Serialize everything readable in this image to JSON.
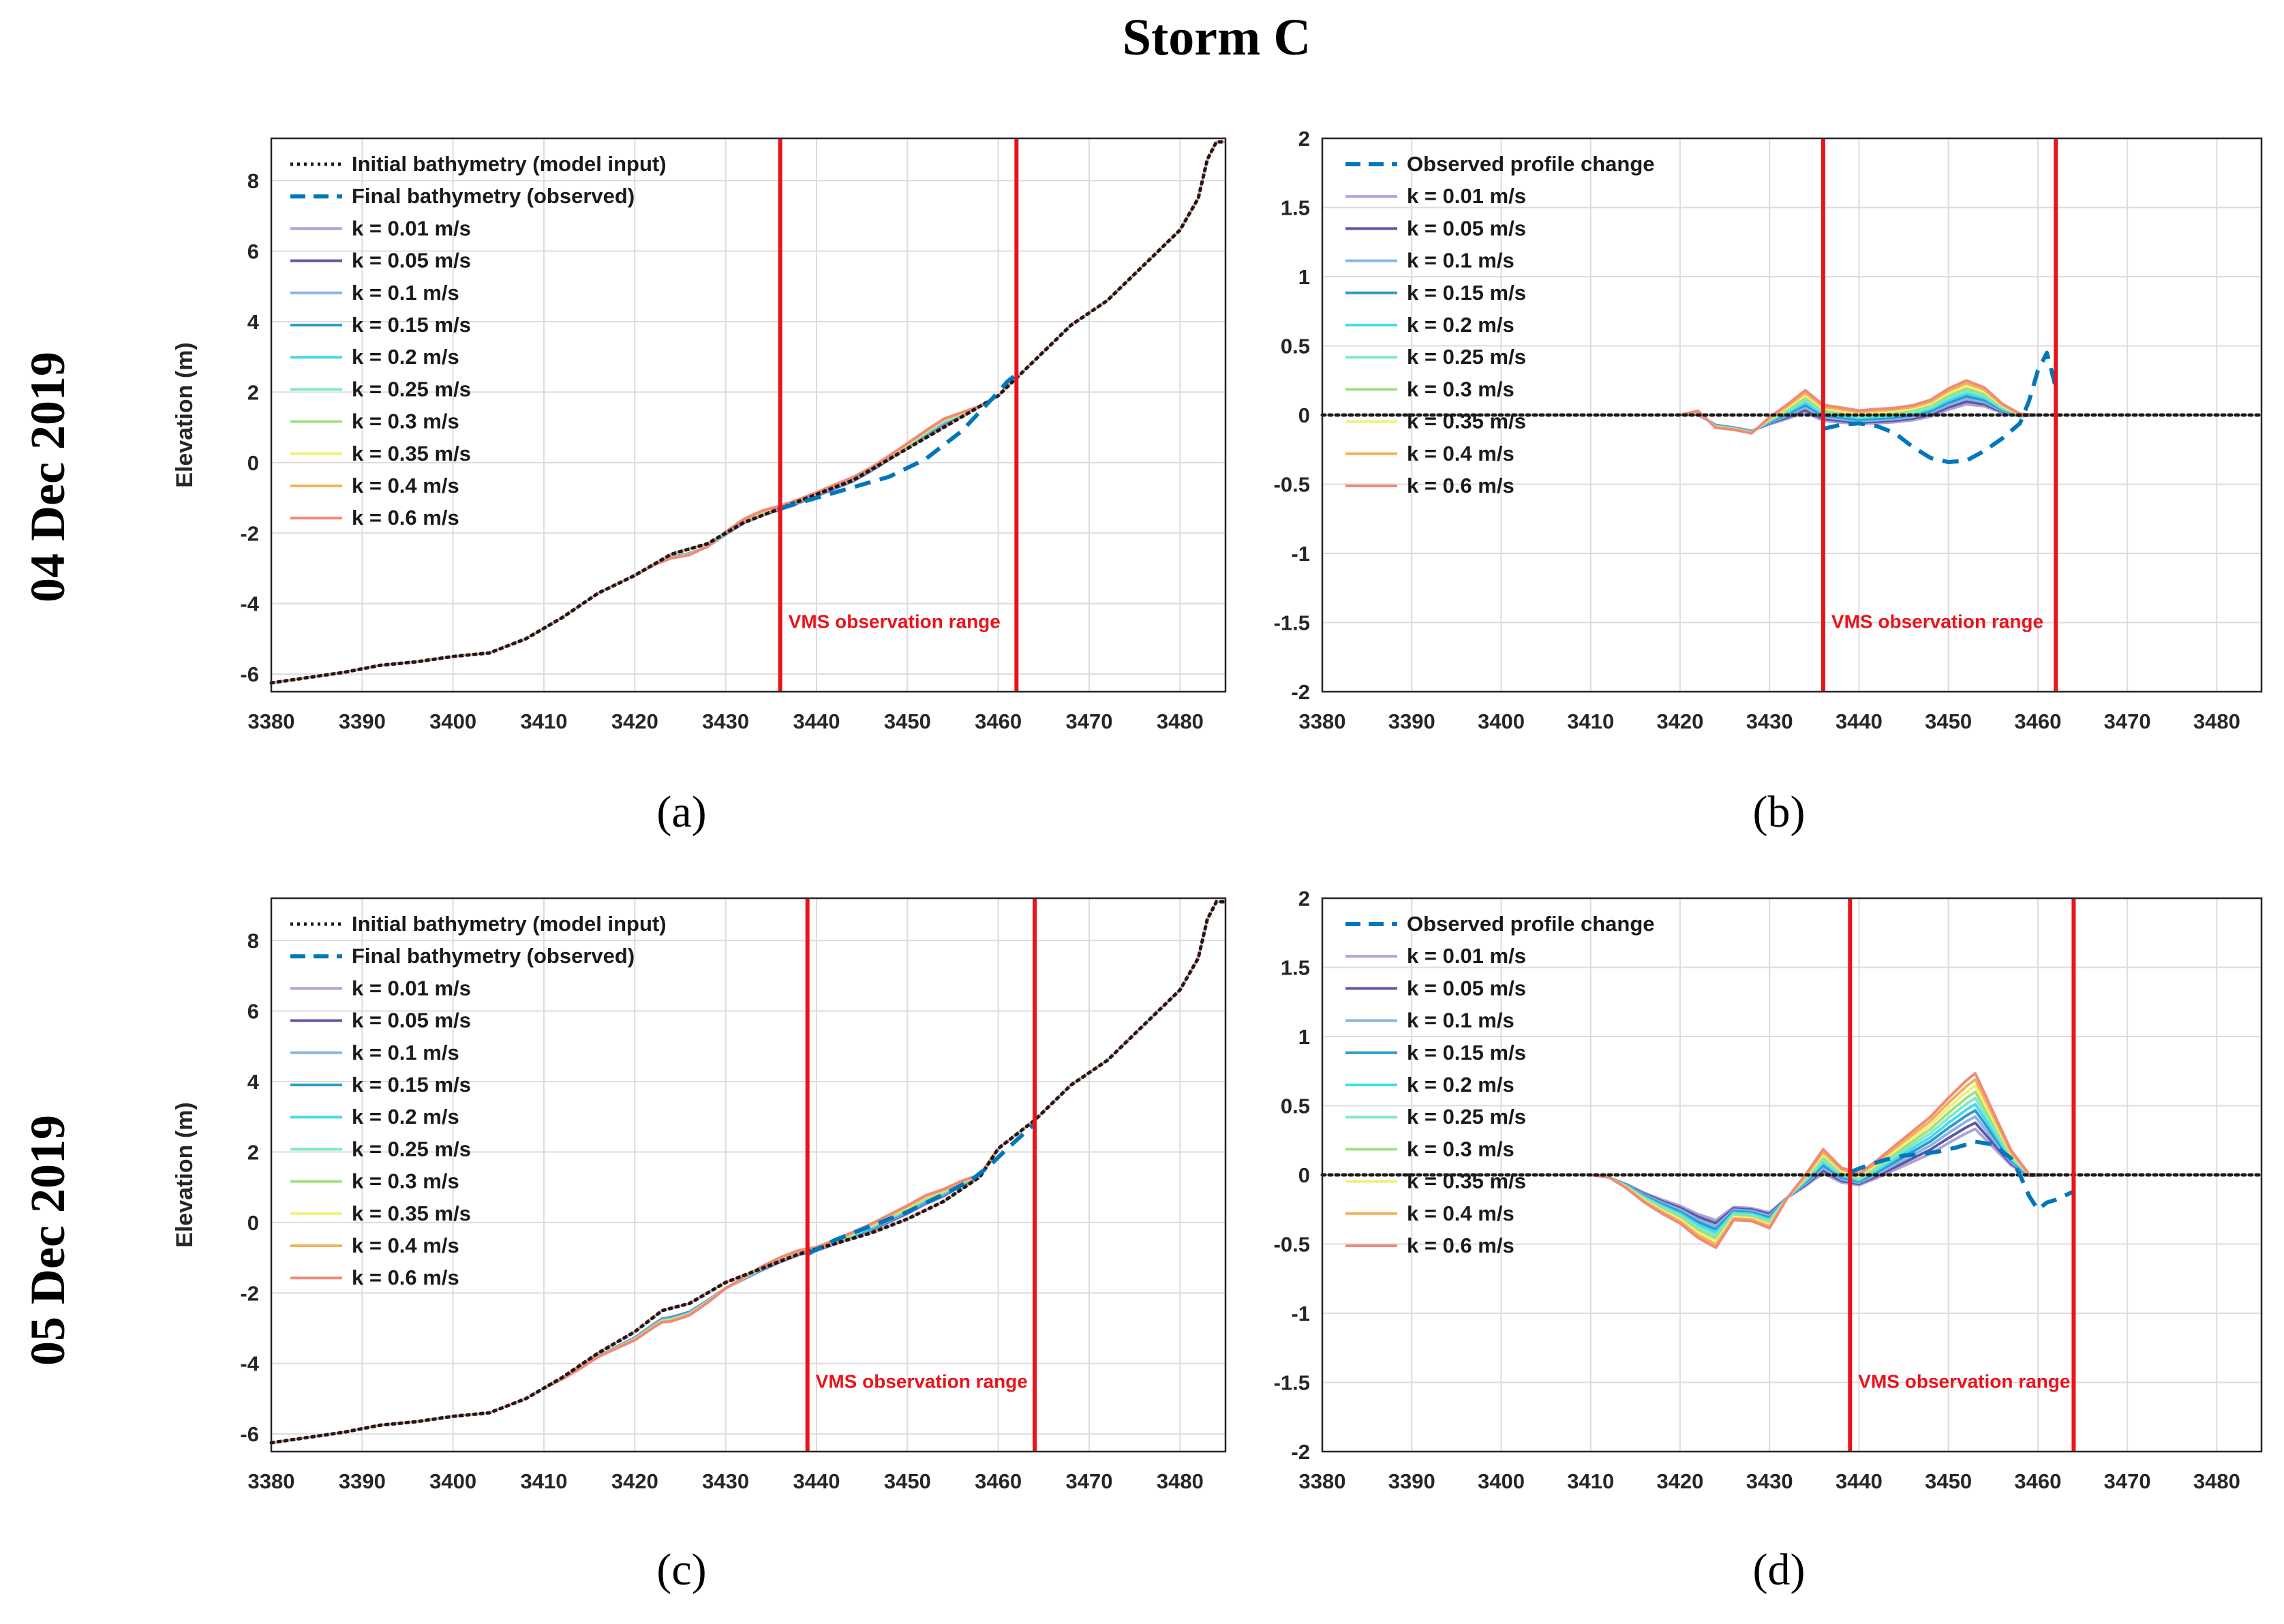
{
  "figure": {
    "title": "Storm C",
    "row_labels": [
      "04 Dec 2019",
      "05 Dec 2019"
    ],
    "panel_labels": [
      "(a)",
      "(b)",
      "(c)",
      "(d)"
    ],
    "colors": {
      "initial": "#1a1a1a",
      "observed": "#0077bb",
      "vms": "#e8141b",
      "grid": "#dcdcdc"
    },
    "k_series": [
      {
        "label": "k = 0.01 m/s",
        "color": "#a9a3d6"
      },
      {
        "label": "k = 0.05 m/s",
        "color": "#5c57a8"
      },
      {
        "label": "k = 0.1 m/s",
        "color": "#8ab4e6"
      },
      {
        "label": "k = 0.15 m/s",
        "color": "#2f98c9"
      },
      {
        "label": "k = 0.2 m/s",
        "color": "#3fdcec"
      },
      {
        "label": "k = 0.25 m/s",
        "color": "#7fe8cc"
      },
      {
        "label": "k = 0.3 m/s",
        "color": "#9fe07f"
      },
      {
        "label": "k = 0.35 m/s",
        "color": "#f0f07a"
      },
      {
        "label": "k = 0.4 m/s",
        "color": "#f2b25a"
      },
      {
        "label": "k = 0.6 m/s",
        "color": "#f08a78"
      }
    ]
  },
  "chart_data": [
    {
      "id": "a",
      "type": "line",
      "ylabel": "Elevation (m)",
      "xlim": [
        3380,
        3485
      ],
      "ylim": [
        -6.5,
        9.2
      ],
      "xticks": [
        3380,
        3390,
        3400,
        3410,
        3420,
        3430,
        3440,
        3450,
        3460,
        3470,
        3480
      ],
      "yticks": [
        -6,
        -4,
        -2,
        0,
        2,
        4,
        6,
        8
      ],
      "vms_lines": [
        3436,
        3462
      ],
      "vms_label": "VMS observation range",
      "legend": [
        "Initial bathymetry (model input)",
        "Final bathymetry (observed)"
      ],
      "initial": {
        "x": [
          3380,
          3384,
          3388,
          3392,
          3396,
          3400,
          3404,
          3408,
          3412,
          3416,
          3420,
          3424,
          3428,
          3432,
          3436,
          3440,
          3444,
          3448,
          3452,
          3456,
          3460,
          3464,
          3468,
          3472,
          3476,
          3480,
          3482,
          3483,
          3484,
          3485
        ],
        "y": [
          -6.25,
          -6.1,
          -5.95,
          -5.75,
          -5.65,
          -5.5,
          -5.4,
          -5.0,
          -4.4,
          -3.7,
          -3.2,
          -2.6,
          -2.3,
          -1.7,
          -1.3,
          -0.9,
          -0.5,
          0.1,
          0.7,
          1.3,
          1.9,
          2.9,
          3.9,
          4.6,
          5.6,
          6.6,
          7.5,
          8.6,
          9.1,
          9.1
        ]
      },
      "observed": {
        "x": [
          3436,
          3440,
          3444,
          3448,
          3452,
          3456,
          3460,
          3461,
          3462
        ],
        "y": [
          -1.3,
          -1.0,
          -0.7,
          -0.4,
          0.1,
          0.9,
          2.0,
          2.3,
          2.5
        ]
      },
      "deviation": {
        "x": [
          3420,
          3422,
          3424,
          3426,
          3428,
          3430,
          3432,
          3434,
          3436,
          3438,
          3440,
          3442,
          3444,
          3446,
          3448,
          3450,
          3452,
          3454,
          3456,
          3458,
          3460
        ],
        "amp": [
          0,
          -0.02,
          -0.12,
          -0.18,
          -0.1,
          0,
          0.05,
          0.08,
          0.02,
          0,
          0,
          0.02,
          0.03,
          0.01,
          0.05,
          0.1,
          0.16,
          0.2,
          0.1,
          0,
          0
        ]
      }
    },
    {
      "id": "b",
      "type": "line",
      "ylabel": "",
      "xlim": [
        3380,
        3485
      ],
      "ylim": [
        -2,
        2
      ],
      "xticks": [
        3380,
        3390,
        3400,
        3410,
        3420,
        3430,
        3440,
        3450,
        3460,
        3470,
        3480
      ],
      "yticks": [
        -2,
        -1.5,
        -1,
        -0.5,
        0,
        0.5,
        1,
        1.5,
        2
      ],
      "vms_lines": [
        3436,
        3462
      ],
      "vms_label": "VMS observation range",
      "legend": [
        "Observed profile change"
      ],
      "zero_line": true,
      "observed": {
        "x": [
          3436,
          3438,
          3440,
          3442,
          3444,
          3446,
          3448,
          3450,
          3452,
          3454,
          3456,
          3458,
          3459,
          3460,
          3461,
          3462
        ],
        "y": [
          -0.1,
          -0.07,
          -0.06,
          -0.08,
          -0.13,
          -0.23,
          -0.31,
          -0.34,
          -0.33,
          -0.26,
          -0.17,
          -0.06,
          0.1,
          0.32,
          0.45,
          0.2
        ]
      },
      "deviation": {
        "x": [
          3420,
          3422,
          3424,
          3426,
          3428,
          3430,
          3432,
          3434,
          3436,
          3438,
          3440,
          3442,
          3444,
          3446,
          3448,
          3450,
          3452,
          3454,
          3456,
          3458,
          3460
        ],
        "amp": [
          0,
          0.02,
          -0.1,
          -0.12,
          -0.15,
          -0.05,
          0.03,
          0.12,
          0.02,
          0,
          -0.02,
          -0.01,
          0,
          0.02,
          0.06,
          0.14,
          0.2,
          0.16,
          0.06,
          0,
          0
        ]
      }
    },
    {
      "id": "c",
      "type": "line",
      "ylabel": "Elevation (m)",
      "xlim": [
        3380,
        3485
      ],
      "ylim": [
        -6.5,
        9.2
      ],
      "xticks": [
        3380,
        3390,
        3400,
        3410,
        3420,
        3430,
        3440,
        3450,
        3460,
        3470,
        3480
      ],
      "yticks": [
        -6,
        -4,
        -2,
        0,
        2,
        4,
        6,
        8
      ],
      "vms_lines": [
        3439,
        3464
      ],
      "vms_label": "VMS observation range",
      "legend": [
        "Initial bathymetry (model input)",
        "Final bathymetry (observed)"
      ],
      "initial": {
        "x": [
          3380,
          3384,
          3388,
          3392,
          3396,
          3400,
          3404,
          3408,
          3412,
          3416,
          3420,
          3423,
          3426,
          3430,
          3434,
          3438,
          3442,
          3446,
          3450,
          3454,
          3458,
          3460,
          3462,
          3464,
          3468,
          3472,
          3476,
          3480,
          3482,
          3483,
          3484,
          3485
        ],
        "y": [
          -6.25,
          -6.1,
          -5.95,
          -5.75,
          -5.65,
          -5.5,
          -5.4,
          -5.0,
          -4.4,
          -3.7,
          -3.1,
          -2.5,
          -2.3,
          -1.7,
          -1.3,
          -0.9,
          -0.6,
          -0.3,
          0.1,
          0.6,
          1.3,
          2.1,
          2.5,
          2.9,
          3.9,
          4.6,
          5.6,
          6.6,
          7.5,
          8.6,
          9.1,
          9.1
        ]
      },
      "observed": {
        "x": [
          3439,
          3442,
          3446,
          3450,
          3454,
          3457,
          3459,
          3461,
          3464
        ],
        "y": [
          -0.9,
          -0.5,
          -0.1,
          0.3,
          0.8,
          1.2,
          1.6,
          2.1,
          2.8
        ]
      },
      "deviation": {
        "x": [
          3410,
          3412,
          3414,
          3416,
          3418,
          3420,
          3422,
          3424,
          3426,
          3428,
          3430,
          3432,
          3434,
          3436,
          3438,
          3440,
          3442,
          3444,
          3446,
          3448,
          3450,
          3452,
          3454,
          3456,
          3458,
          3460
        ],
        "amp": [
          0,
          -0.05,
          -0.1,
          -0.12,
          -0.18,
          -0.25,
          -0.3,
          -0.38,
          -0.35,
          -0.3,
          -0.2,
          -0.1,
          0,
          0.05,
          0.05,
          0,
          0.05,
          0.12,
          0.2,
          0.26,
          0.32,
          0.36,
          0.3,
          0.2,
          0.05,
          0
        ]
      }
    },
    {
      "id": "d",
      "type": "line",
      "ylabel": "",
      "xlim": [
        3380,
        3485
      ],
      "ylim": [
        -2,
        2
      ],
      "xticks": [
        3380,
        3390,
        3400,
        3410,
        3420,
        3430,
        3440,
        3450,
        3460,
        3470,
        3480
      ],
      "yticks": [
        -2,
        -1.5,
        -1,
        -0.5,
        0,
        0.5,
        1,
        1.5,
        2
      ],
      "vms_lines": [
        3439,
        3464
      ],
      "vms_label": "VMS observation range",
      "legend": [
        "Observed profile change"
      ],
      "zero_line": true,
      "observed": {
        "x": [
          3439,
          3441,
          3443,
          3445,
          3447,
          3449,
          3451,
          3453,
          3455,
          3457,
          3458,
          3459,
          3460,
          3461,
          3462,
          3464
        ],
        "y": [
          0.02,
          0.07,
          0.11,
          0.14,
          0.15,
          0.17,
          0.2,
          0.24,
          0.22,
          0.12,
          0.0,
          -0.15,
          -0.25,
          -0.2,
          -0.18,
          -0.12
        ]
      },
      "deviation": {
        "x": [
          3410,
          3412,
          3414,
          3416,
          3418,
          3420,
          3422,
          3424,
          3426,
          3428,
          3430,
          3432,
          3434,
          3436,
          3438,
          3440,
          3442,
          3444,
          3446,
          3448,
          3450,
          3452,
          3453,
          3455,
          3457,
          3459,
          3461
        ],
        "amp": [
          0,
          -0.02,
          -0.1,
          -0.2,
          -0.28,
          -0.35,
          -0.45,
          -0.52,
          -0.34,
          -0.35,
          -0.4,
          -0.2,
          -0.05,
          0.12,
          0.0,
          -0.04,
          0.05,
          0.15,
          0.25,
          0.35,
          0.48,
          0.6,
          0.65,
          0.4,
          0.15,
          0.0,
          0
        ]
      }
    }
  ]
}
